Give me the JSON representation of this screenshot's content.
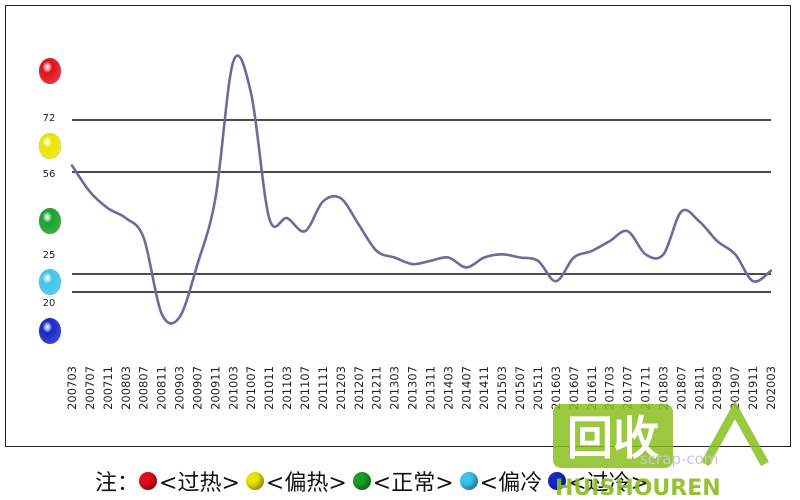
{
  "chart_data": {
    "type": "line",
    "x": [
      "200703",
      "200707",
      "200711",
      "200803",
      "200807",
      "200811",
      "200903",
      "200907",
      "200911",
      "201003",
      "201007",
      "201011",
      "201103",
      "201107",
      "201111",
      "201203",
      "201207",
      "201211",
      "201303",
      "201307",
      "201311",
      "201403",
      "201407",
      "201411",
      "201503",
      "201507",
      "201511",
      "201603",
      "201607",
      "201611",
      "201703",
      "201707",
      "201711",
      "201803",
      "201807",
      "201811",
      "201903",
      "201907",
      "201911",
      "202003"
    ],
    "series": [
      {
        "values": [
          58,
          50,
          45,
          42,
          36,
          14,
          13,
          28,
          48,
          90,
          80,
          42,
          42,
          38,
          47,
          48,
          40,
          32,
          30,
          28,
          29,
          30,
          27,
          30,
          31,
          30,
          29,
          23,
          30,
          32,
          35,
          38,
          31,
          31,
          44,
          41,
          35,
          31,
          23,
          26
        ]
      }
    ],
    "reference_lines": [
      {
        "label": "72",
        "value": 72
      },
      {
        "label": "56",
        "value": 56
      },
      {
        "label": "25",
        "value": 25
      },
      {
        "label": "20",
        "value": 20
      }
    ],
    "signal_balls": [
      {
        "color": "#e0101a"
      },
      {
        "color": "#e8e600"
      },
      {
        "color": "#17a12a"
      },
      {
        "color": "#3cc4ec"
      },
      {
        "color": "#1528c8"
      }
    ],
    "line_color": "#6e6a9a",
    "grid": false
  },
  "legend": {
    "note": "注：",
    "items": [
      {
        "label": "<过热>",
        "color": "#e0101a"
      },
      {
        "label": "<偏热>",
        "color": "#e8e600"
      },
      {
        "label": "<正常>",
        "color": "#17a12a"
      },
      {
        "label": "<偏冷",
        "color": "#3cc4ec"
      },
      {
        "label": "<过冷>",
        "color": "#1528c8"
      }
    ]
  },
  "watermark": {
    "site": "scrap-com",
    "brand": "HUISHOUREN",
    "glyph": "回收人"
  }
}
